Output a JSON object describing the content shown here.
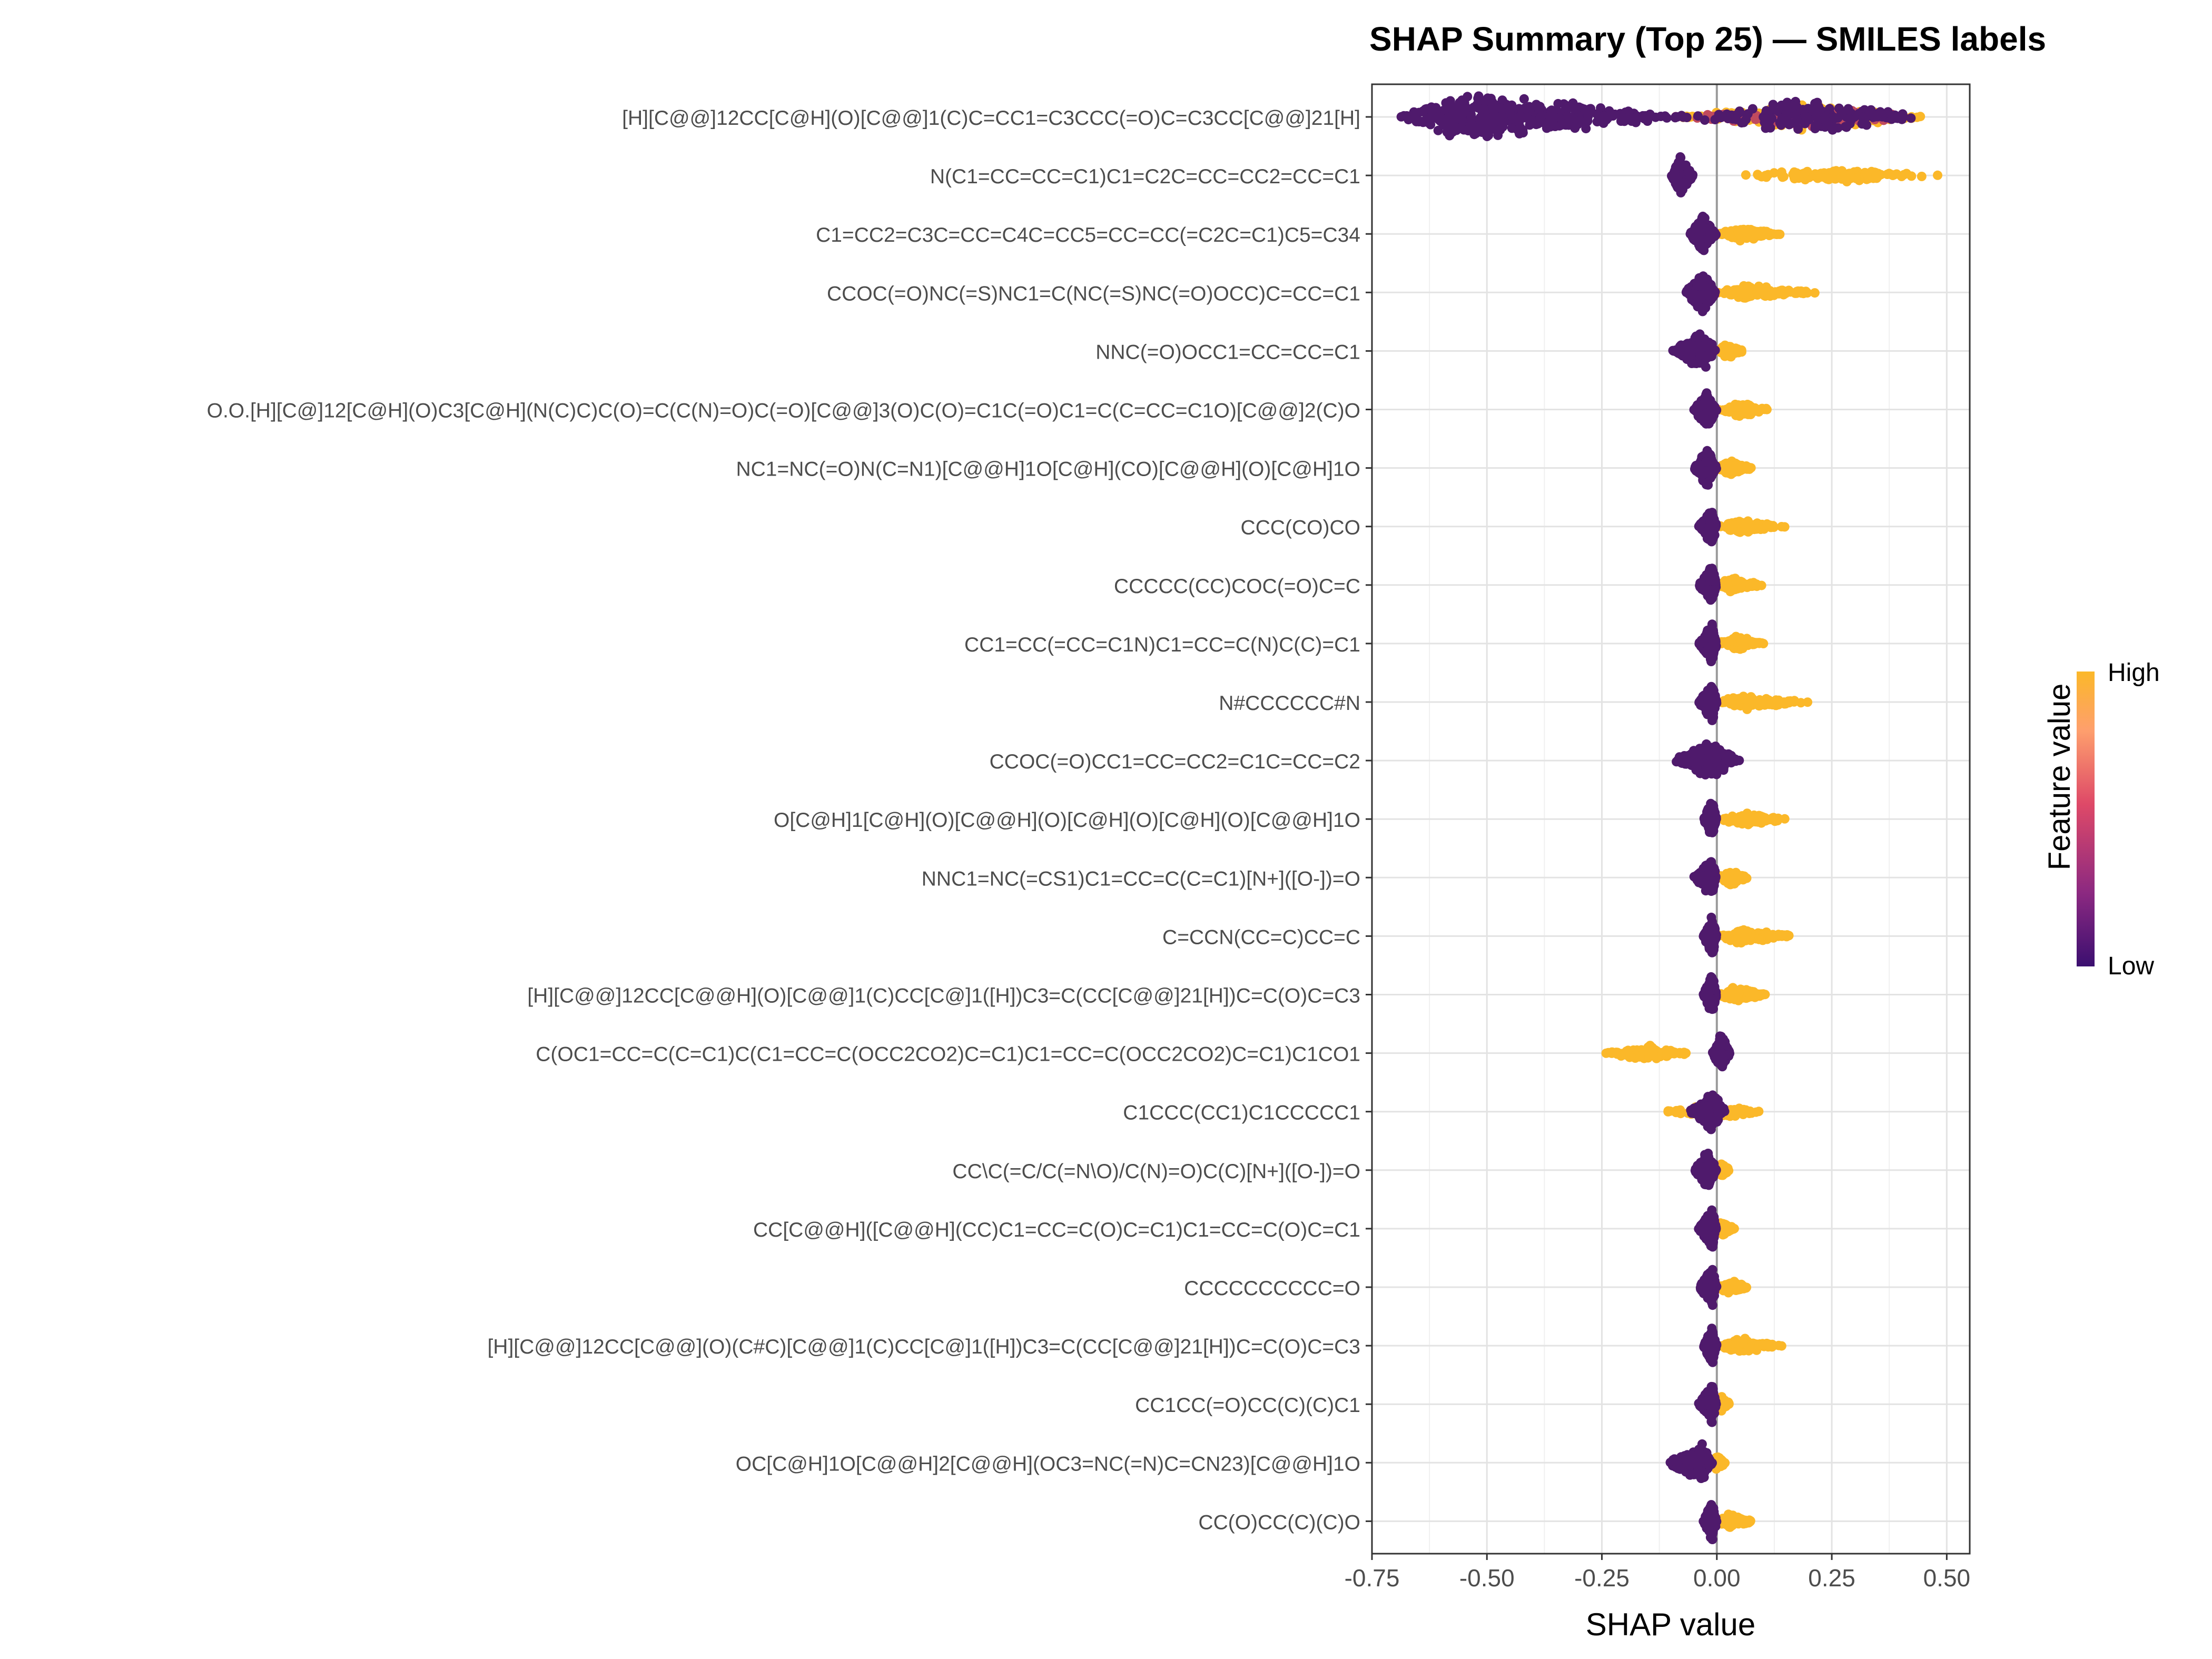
{
  "chart_data": {
    "type": "scatter",
    "subtype": "beeswarm",
    "title": "SHAP Summary (Top 25) — SMILES labels",
    "xlabel": "SHAP value",
    "ylabel": "",
    "xlim": [
      -0.75,
      0.55
    ],
    "x_ticks": [
      -0.75,
      -0.5,
      -0.25,
      0.0,
      0.25,
      0.5
    ],
    "x_tick_labels": [
      "-0.75",
      "-0.50",
      "-0.25",
      "0.00",
      "0.25",
      "0.50"
    ],
    "grid": true,
    "zero_line": true,
    "legend": {
      "position": "right",
      "title": "Feature value",
      "high_label": "High",
      "low_label": "Low",
      "colors": [
        "#3b0f70",
        "#8c2981",
        "#de4968",
        "#fe9f6d",
        "#fbb829"
      ]
    },
    "colors": {
      "low": "#4f1a6c",
      "high": "#fbb829",
      "mid": "#c04a5e"
    },
    "features": [
      {
        "label": "[H][C@@]12CC[C@H](O)[C@@]1(C)C=CC1=C3CCC(=O)C=C3CC[C@@]21[H]",
        "low_range": [
          -0.7,
          -0.05
        ],
        "low_center": -0.54,
        "high_range": [
          -0.1,
          0.46
        ],
        "high_center": 0.2,
        "mixed": true
      },
      {
        "label": "N(C1=CC=CC=C1)C1=C2C=CC=CC2=CC=C1",
        "low_range": [
          -0.1,
          -0.05
        ],
        "low_center": -0.08,
        "high_range": [
          0.05,
          0.5
        ],
        "high_center": 0.25
      },
      {
        "label": "C1=CC2=C3C=CC=C4C=CC5=CC=CC(=C2C=C1)C5=C34",
        "low_range": [
          -0.06,
          0.0
        ],
        "low_center": -0.03,
        "high_range": [
          0.0,
          0.14
        ],
        "high_center": 0.05
      },
      {
        "label": "CCOC(=O)NC(=S)NC1=C(NC(=S)NC(=O)OCC)C=CC=C1",
        "low_range": [
          -0.07,
          0.0
        ],
        "low_center": -0.03,
        "high_range": [
          0.0,
          0.22
        ],
        "high_center": 0.06
      },
      {
        "label": "NNC(=O)OCC1=CC=CC=C1",
        "low_range": [
          -0.1,
          0.0
        ],
        "low_center": -0.03,
        "high_range": [
          0.0,
          0.06
        ],
        "high_center": 0.02
      },
      {
        "label": "O.O.[H][C@]12[C@H](O)C3[C@H](N(C)C)C(O)=C(C(N)=O)C(=O)[C@@]3(O)C(O)=C1C(=O)C1=C(C=CC=C1O)[C@@]2(C)O",
        "low_range": [
          -0.05,
          0.0
        ],
        "low_center": -0.02,
        "high_range": [
          0.0,
          0.12
        ],
        "high_center": 0.05
      },
      {
        "label": "NC1=NC(=O)N(C=N1)[C@@H]1O[C@H](CO)[C@@H](O)[C@H]1O",
        "low_range": [
          -0.05,
          0.0
        ],
        "low_center": -0.02,
        "high_range": [
          0.0,
          0.08
        ],
        "high_center": 0.03
      },
      {
        "label": "CCC(CO)CO",
        "low_range": [
          -0.04,
          0.0
        ],
        "low_center": -0.01,
        "high_range": [
          0.0,
          0.15
        ],
        "high_center": 0.05
      },
      {
        "label": "CCCCC(CC)COC(=O)C=C",
        "low_range": [
          -0.04,
          0.0
        ],
        "low_center": -0.01,
        "high_range": [
          0.0,
          0.1
        ],
        "high_center": 0.03
      },
      {
        "label": "CC1=CC(=CC=C1N)C1=CC=C(N)C(C)=C1",
        "low_range": [
          -0.04,
          0.0
        ],
        "low_center": -0.01,
        "high_range": [
          0.0,
          0.11
        ],
        "high_center": 0.04
      },
      {
        "label": "N#CCCCCC#N",
        "low_range": [
          -0.04,
          0.0
        ],
        "low_center": -0.01,
        "high_range": [
          0.0,
          0.2
        ],
        "high_center": 0.06
      },
      {
        "label": "CCOC(=O)CC1=CC=CC2=C1C=CC=C2",
        "low_range": [
          -0.1,
          0.05
        ],
        "low_center": -0.01,
        "high_range": [
          -0.04,
          0.03
        ],
        "high_center": 0.0,
        "mixed": true
      },
      {
        "label": "O[C@H]1[C@H](O)[C@@H](O)[C@H](O)[C@H](O)[C@@H]1O",
        "low_range": [
          -0.03,
          0.0
        ],
        "low_center": -0.01,
        "high_range": [
          0.0,
          0.15
        ],
        "high_center": 0.06
      },
      {
        "label": "NNC1=NC(=CS1)C1=CC=C(C=C1)[N+]([O-])=O",
        "low_range": [
          -0.05,
          0.0
        ],
        "low_center": -0.01,
        "high_range": [
          0.0,
          0.07
        ],
        "high_center": 0.03
      },
      {
        "label": "C=CCN(CC=C)CC=C",
        "low_range": [
          -0.03,
          0.0
        ],
        "low_center": -0.01,
        "high_range": [
          0.0,
          0.18
        ],
        "high_center": 0.05
      },
      {
        "label": "[H][C@@]12CC[C@@H](O)[C@@]1(C)CC[C@]1([H])C3=C(CC[C@@]21[H])C=C(O)C=C3",
        "low_range": [
          -0.03,
          0.0
        ],
        "low_center": -0.01,
        "high_range": [
          0.0,
          0.11
        ],
        "high_center": 0.04
      },
      {
        "label": "C(OC1=CC=C(C=C1)C(C1=CC=C(OCC2CO2)C=C1)C1=CC=C(OCC2CO2)C=C1)C1CO1",
        "low_range": [
          -0.01,
          0.03
        ],
        "low_center": 0.01,
        "high_range": [
          -0.25,
          -0.05
        ],
        "high_center": -0.15
      },
      {
        "label": "C1CCC(CC1)C1CCCCC1",
        "low_range": [
          -0.06,
          0.02
        ],
        "low_center": -0.01,
        "high_range": [
          -0.11,
          0.1
        ],
        "high_center": 0.0
      },
      {
        "label": "CC\\C(=C/C(=N\\O)/C(N)=O)C(C)[N+]([O-])=O",
        "low_range": [
          -0.05,
          0.0
        ],
        "low_center": -0.02,
        "high_range": [
          0.0,
          0.03
        ],
        "high_center": 0.01
      },
      {
        "label": "CC[C@@H]([C@@H](CC)C1=CC=C(O)C=C1)C1=CC=C(O)C=C1",
        "low_range": [
          -0.04,
          0.0
        ],
        "low_center": -0.01,
        "high_range": [
          0.0,
          0.04
        ],
        "high_center": 0.01
      },
      {
        "label": "CCCCCCCCCC=O",
        "low_range": [
          -0.04,
          0.0
        ],
        "low_center": -0.01,
        "high_range": [
          0.0,
          0.07
        ],
        "high_center": 0.03
      },
      {
        "label": "[H][C@@]12CC[C@@](O)(C#C)[C@@]1(C)CC[C@]1([H])C3=C(CC[C@@]21[H])C=C(O)C=C3",
        "low_range": [
          -0.03,
          0.0
        ],
        "low_center": -0.01,
        "high_range": [
          0.0,
          0.15
        ],
        "high_center": 0.05
      },
      {
        "label": "CC1CC(=O)CC(C)(C)C1",
        "low_range": [
          -0.04,
          0.0
        ],
        "low_center": -0.01,
        "high_range": [
          0.0,
          0.03
        ],
        "high_center": 0.01
      },
      {
        "label": "OC[C@H]1O[C@@H]2[C@@H](OC3=NC(=N)C=CN23)[C@@H]1O",
        "low_range": [
          -0.11,
          -0.01
        ],
        "low_center": -0.03,
        "high_range": [
          -0.01,
          0.02
        ],
        "high_center": 0.0
      },
      {
        "label": "CC(O)CC(C)(C)O",
        "low_range": [
          -0.03,
          0.0
        ],
        "low_center": -0.01,
        "high_range": [
          0.0,
          0.08
        ],
        "high_center": 0.03
      }
    ]
  }
}
